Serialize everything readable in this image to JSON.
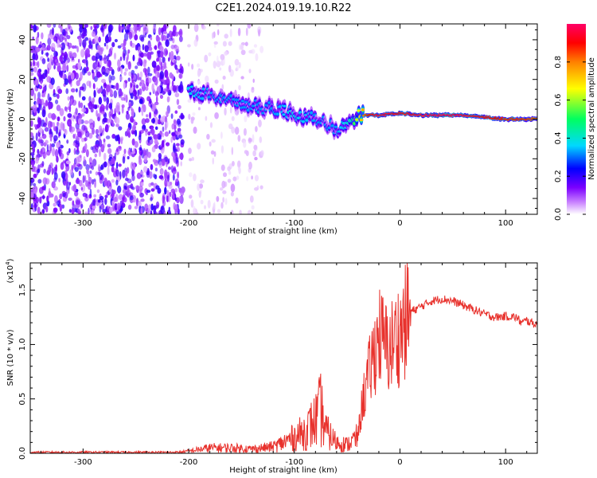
{
  "figure": {
    "title": "C2E1.2024.019.19.10.R22"
  },
  "chart_data": [
    {
      "type": "heatmap",
      "xlabel": "Height of straight line (km)",
      "ylabel": "Frequency (Hz)",
      "xlim": [
        -350,
        130
      ],
      "ylim": [
        -48,
        48
      ],
      "x_ticks": [
        -300,
        -200,
        -100,
        0,
        100
      ],
      "x_tick_labels": [
        "-300",
        "-200",
        "-100",
        "0",
        "100"
      ],
      "y_ticks": [
        -40,
        -20,
        0,
        20,
        40
      ],
      "y_tick_labels": [
        "-40",
        "-20",
        "0",
        "20",
        "40"
      ],
      "colorbar": {
        "label": "Normalized spectral amplitude",
        "range": [
          0,
          1
        ],
        "ticks": [
          0.0,
          0.2,
          0.4,
          0.6,
          0.8
        ],
        "tick_labels": [
          "0.0",
          "0.2",
          "0.4",
          "0.6",
          "0.8"
        ],
        "colors": [
          "#ffffff",
          "#cc88ff",
          "#7b00ff",
          "#0000ff",
          "#00d8ff",
          "#00ff60",
          "#ffff00",
          "#ff8000",
          "#ff0000",
          "#ff0066"
        ]
      },
      "ridge": {
        "x": [
          -200,
          -180,
          -160,
          -140,
          -120,
          -100,
          -80,
          -60,
          -45,
          -40,
          -30,
          -20,
          0,
          20,
          40,
          60,
          80,
          100,
          120,
          130
        ],
        "y": [
          14,
          12,
          9,
          7,
          5,
          3,
          0,
          -5,
          -2,
          2,
          2,
          2,
          3,
          2,
          2,
          2,
          1,
          0,
          0,
          0
        ],
        "amplitude": [
          0.35,
          0.3,
          0.3,
          0.3,
          0.3,
          0.35,
          0.3,
          0.3,
          0.4,
          0.6,
          0.8,
          0.9,
          0.85,
          0.9,
          0.95,
          0.9,
          0.85,
          0.8,
          0.8,
          0.75
        ]
      },
      "noise_regions": [
        {
          "x": [
            -350,
            -205
          ],
          "y": [
            -48,
            48
          ],
          "amplitude": 0.15
        },
        {
          "x": [
            -200,
            -130
          ],
          "y": [
            -48,
            48
          ],
          "amplitude": 0.04
        }
      ]
    },
    {
      "type": "line",
      "xlabel": "Height of straight line (km)",
      "ylabel": "SNR (10 * v/v)",
      "y_multiplier_label": "(x10",
      "y_multiplier_exponent": "4",
      "y_multiplier_close": ")",
      "xlim": [
        -350,
        130
      ],
      "ylim": [
        0,
        1.75
      ],
      "x_ticks": [
        -300,
        -200,
        -100,
        0,
        100
      ],
      "x_tick_labels": [
        "-300",
        "-200",
        "-100",
        "0",
        "100"
      ],
      "y_ticks": [
        0.0,
        0.5,
        1.0,
        1.5
      ],
      "y_tick_labels": [
        "0.0",
        "0.5",
        "1.0",
        "1.5"
      ],
      "series": [
        {
          "color": "#e8322d",
          "x": [
            -350,
            -300,
            -250,
            -210,
            -200,
            -180,
            -160,
            -140,
            -120,
            -110,
            -100,
            -90,
            -80,
            -75,
            -70,
            -60,
            -50,
            -40,
            -35,
            -30,
            -25,
            -20,
            -15,
            -10,
            -5,
            0,
            5,
            10,
            20,
            30,
            40,
            50,
            60,
            70,
            80,
            90,
            100,
            110,
            115,
            120,
            125,
            130
          ],
          "y": [
            0.01,
            0.01,
            0.01,
            0.01,
            0.02,
            0.05,
            0.05,
            0.04,
            0.06,
            0.1,
            0.15,
            0.2,
            0.3,
            0.4,
            0.2,
            0.1,
            0.08,
            0.15,
            0.5,
            0.7,
            0.9,
            1.1,
            1.0,
            0.95,
            1.05,
            1.1,
            1.2,
            1.3,
            1.35,
            1.4,
            1.42,
            1.4,
            1.36,
            1.32,
            1.28,
            1.25,
            1.26,
            1.25,
            1.2,
            1.22,
            1.2,
            1.18
          ]
        }
      ]
    }
  ]
}
